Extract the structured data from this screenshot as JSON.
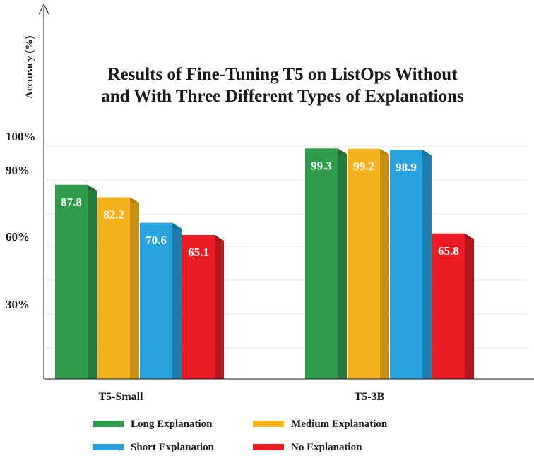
{
  "chart_data": {
    "type": "bar",
    "title": [
      "Results of Fine-Tuning T5 on ListOps Without",
      "and With Three Different Types of Explanations"
    ],
    "ylabel": "Accuracy (%)",
    "xlabel": "",
    "categories": [
      "T5-Small",
      "T5-3B"
    ],
    "series": [
      {
        "name": "Long Explanation",
        "values": [
          87.8,
          99.3
        ],
        "color": "#2e9c4a",
        "side": "#237a39",
        "top": "#1f6b31"
      },
      {
        "name": "Medium Explanation",
        "values": [
          82.2,
          99.2
        ],
        "color": "#f4b21d",
        "side": "#c98f12",
        "top": "#b8820f"
      },
      {
        "name": "Short Explanation",
        "values": [
          70.6,
          98.9
        ],
        "color": "#28a3dd",
        "side": "#1c7fb0",
        "top": "#186f9b"
      },
      {
        "name": "No Explanation",
        "values": [
          65.1,
          65.8
        ],
        "color": "#ec1c24",
        "side": "#b8151b",
        "top": "#a21217"
      }
    ],
    "yticks": [
      {
        "label": "30%",
        "value": 30
      },
      {
        "label": "60%",
        "value": 60
      },
      {
        "label": "90%",
        "value": 90
      },
      {
        "label": "100%",
        "value": 100
      }
    ],
    "ylim": [
      0,
      100
    ],
    "grid": true,
    "legend_position": "bottom"
  }
}
